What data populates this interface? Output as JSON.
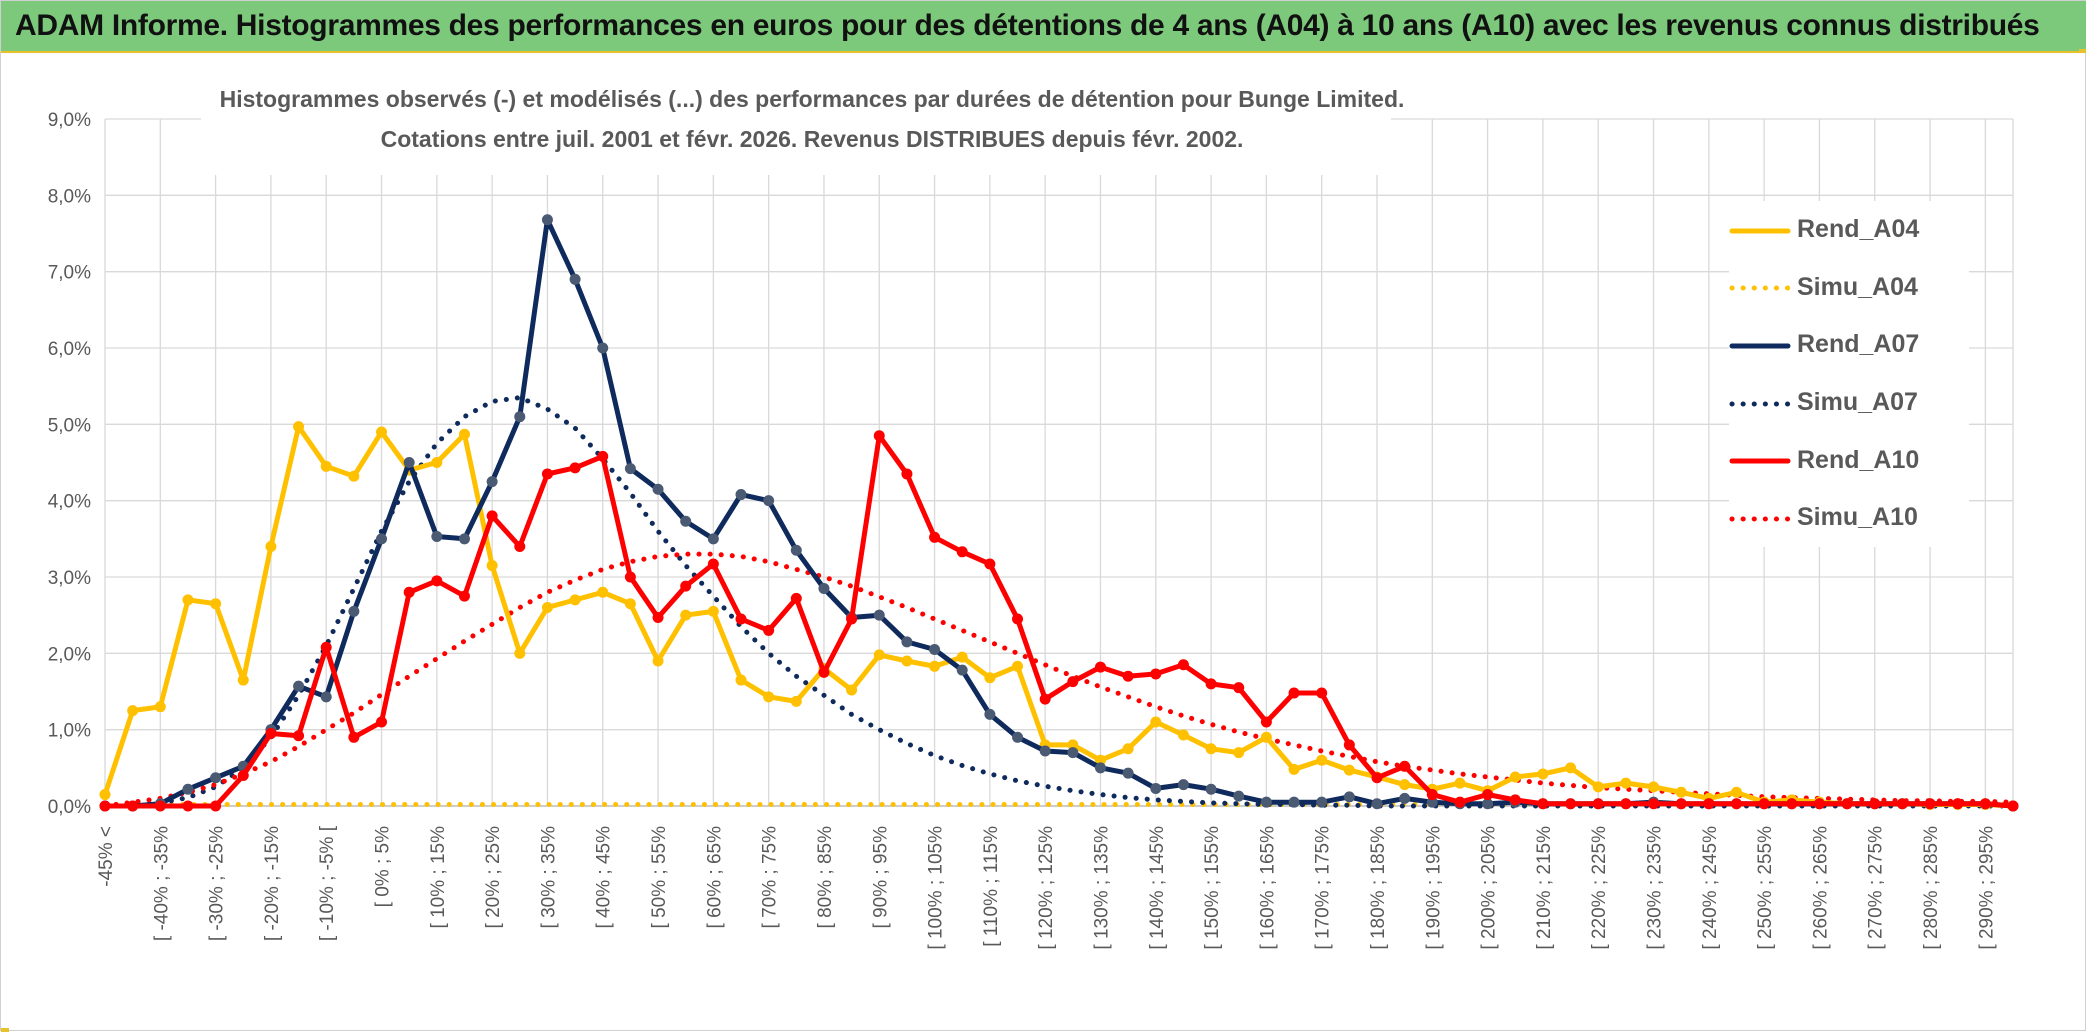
{
  "header": {
    "title": "ADAM Informe. Histogrammes des performances en euros pour des détentions de 4 ans (A04) à 10 ans (A10) avec les revenus connus distribués"
  },
  "chart_data": {
    "type": "line",
    "title": "Histogrammes observés (-) et modélisés (...) des performances par durées de détention pour Bunge Limited.",
    "subtitle": "Cotations entre juil. 2001 et févr. 2026. Revenus DISTRIBUES depuis févr. 2002.",
    "xlabel": "",
    "ylabel": "",
    "ylim": [
      0,
      9
    ],
    "grid": true,
    "legend_position": "right",
    "y_ticks": [
      "0,0%",
      "1,0%",
      "2,0%",
      "3,0%",
      "4,0%",
      "5,0%",
      "6,0%",
      "7,0%",
      "8,0%",
      "9,0%"
    ],
    "x_tick_labels": [
      "-45% <",
      "[ -40% ; -35%",
      "[ -30% ; -25%",
      "[ -20% ; -15%",
      "[ -10% ; -5% [",
      "[ 0% ; 5%",
      "[ 10% ; 15%",
      "[ 20% ; 25%",
      "[ 30% ; 35%",
      "[ 40% ; 45%",
      "[ 50% ; 55%",
      "[ 60% ; 65%",
      "[ 70% ; 75%",
      "[ 80% ; 85%",
      "[ 90% ; 95%",
      "[ 100% ; 105%",
      "[ 110% ; 115%",
      "[ 120% ; 125%",
      "[ 130% ; 135%",
      "[ 140% ; 145%",
      "[ 150% ; 155%",
      "[ 160% ; 165%",
      "[ 170% ; 175%",
      "[ 180% ; 185%",
      "[ 190% ; 195%",
      "[ 200% ; 205%",
      "[ 210% ; 215%",
      "[ 220% ; 225%",
      "[ 230% ; 235%",
      "[ 240% ; 245%",
      "[ 250% ; 255%",
      "[ 260% ; 265%",
      "[ 270% ; 275%",
      "[ 280% ; 285%",
      "[ 290% ; 295%"
    ],
    "series": [
      {
        "name": "Rend_A04",
        "style": "solid",
        "color": "#ffc000",
        "markers": true,
        "values": [
          0.15,
          1.25,
          1.3,
          2.7,
          2.65,
          1.65,
          3.4,
          4.97,
          4.45,
          4.32,
          4.9,
          4.4,
          4.5,
          4.87,
          3.15,
          2.0,
          2.6,
          2.7,
          2.8,
          2.65,
          1.9,
          2.5,
          2.55,
          1.65,
          1.43,
          1.37,
          1.8,
          1.52,
          1.98,
          1.9,
          1.83,
          1.95,
          1.68,
          1.83,
          0.8,
          0.8,
          0.6,
          0.75,
          1.1,
          0.93,
          0.75,
          0.7,
          0.9,
          0.48,
          0.6,
          0.47,
          0.38,
          0.28,
          0.22,
          0.3,
          0.2,
          0.38,
          0.42,
          0.5,
          0.25,
          0.3,
          0.25,
          0.18,
          0.1,
          0.18,
          0.05,
          0.08,
          0.05,
          0.03,
          0.03,
          0.03,
          0.02,
          0.02,
          0.02,
          0.0
        ]
      },
      {
        "name": "Simu_A04",
        "style": "dotted",
        "color": "#ffc000",
        "markers": false,
        "values": [
          0.02,
          0.02,
          0.02,
          0.02,
          0.02,
          0.02,
          0.02,
          0.02,
          0.02,
          0.02,
          0.02,
          0.02,
          0.02,
          0.02,
          0.02,
          0.02,
          0.02,
          0.02,
          0.02,
          0.02,
          0.02,
          0.02,
          0.02,
          0.02,
          0.02,
          0.02,
          0.02,
          0.02,
          0.02,
          0.02,
          0.02,
          0.02,
          0.02,
          0.02,
          0.02,
          0.02,
          0.02,
          0.02,
          0.02,
          0.02,
          0.02,
          0.02,
          0.02,
          0.02,
          0.02,
          0.02,
          0.02,
          0.02,
          0.02,
          0.02,
          0.02,
          0.02,
          0.02,
          0.02,
          0.02,
          0.02,
          0.02,
          0.02,
          0.02,
          0.02,
          0.02,
          0.02,
          0.02,
          0.02,
          0.02,
          0.02,
          0.02,
          0.02,
          0.02,
          0.02
        ]
      },
      {
        "name": "Rend_A07",
        "style": "solid",
        "color": "#0f2a5c",
        "markers": true,
        "values": [
          0.0,
          0.0,
          0.03,
          0.22,
          0.37,
          0.52,
          1.0,
          1.57,
          1.43,
          2.55,
          3.5,
          4.5,
          3.53,
          3.5,
          4.25,
          5.1,
          7.68,
          6.9,
          6.0,
          4.42,
          4.15,
          3.73,
          3.5,
          4.08,
          4.0,
          3.35,
          2.85,
          2.47,
          2.5,
          2.15,
          2.05,
          1.78,
          1.2,
          0.9,
          0.72,
          0.7,
          0.5,
          0.43,
          0.23,
          0.28,
          0.22,
          0.13,
          0.05,
          0.05,
          0.05,
          0.12,
          0.03,
          0.1,
          0.05,
          0.03,
          0.03,
          0.05,
          0.03,
          0.03,
          0.03,
          0.03,
          0.05,
          0.03,
          0.03,
          0.03,
          0.03,
          0.03,
          0.03,
          0.03,
          0.03,
          0.03,
          0.03,
          0.03,
          0.03,
          0.0
        ]
      },
      {
        "name": "Simu_A07",
        "style": "dotted",
        "color": "#0f2a5c",
        "markers": false,
        "values": [
          0.0,
          0.01,
          0.04,
          0.11,
          0.25,
          0.5,
          0.9,
          1.45,
          2.1,
          2.85,
          3.6,
          4.25,
          4.75,
          5.1,
          5.3,
          5.35,
          5.2,
          4.95,
          4.55,
          4.1,
          3.6,
          3.15,
          2.75,
          2.35,
          2.0,
          1.7,
          1.45,
          1.2,
          1.0,
          0.82,
          0.66,
          0.53,
          0.42,
          0.33,
          0.26,
          0.2,
          0.15,
          0.11,
          0.08,
          0.06,
          0.04,
          0.03,
          0.02,
          0.02,
          0.01,
          0.01,
          0.0,
          0.0,
          0.0,
          0.0,
          0.0,
          0.0,
          0.0,
          0.0,
          0.0,
          0.0,
          0.0,
          0.0,
          0.0,
          0.0,
          0.0,
          0.0,
          0.0,
          0.0,
          0.0,
          0.0,
          0.0,
          0.0,
          0.0,
          0.0
        ]
      },
      {
        "name": "Rend_A10",
        "style": "solid",
        "color": "#ff0000",
        "markers": true,
        "values": [
          0.0,
          0.0,
          0.0,
          0.0,
          0.0,
          0.4,
          0.95,
          0.92,
          2.08,
          0.9,
          1.1,
          2.8,
          2.95,
          2.75,
          3.8,
          3.4,
          4.35,
          4.43,
          4.58,
          3.0,
          2.47,
          2.88,
          3.17,
          2.45,
          2.3,
          2.72,
          1.75,
          2.45,
          4.85,
          4.35,
          3.52,
          3.33,
          3.17,
          2.45,
          1.4,
          1.63,
          1.82,
          1.7,
          1.73,
          1.85,
          1.6,
          1.55,
          1.1,
          1.48,
          1.48,
          0.8,
          0.37,
          0.52,
          0.15,
          0.05,
          0.15,
          0.08,
          0.03,
          0.03,
          0.03,
          0.03,
          0.03,
          0.03,
          0.03,
          0.03,
          0.03,
          0.03,
          0.03,
          0.03,
          0.03,
          0.03,
          0.03,
          0.03,
          0.03,
          0.0
        ]
      },
      {
        "name": "Simu_A10",
        "style": "dotted",
        "color": "#ff0000",
        "markers": false,
        "values": [
          0.0,
          0.05,
          0.1,
          0.18,
          0.28,
          0.42,
          0.58,
          0.78,
          1.0,
          1.22,
          1.46,
          1.7,
          1.93,
          2.16,
          2.38,
          2.6,
          2.8,
          2.96,
          3.1,
          3.2,
          3.27,
          3.3,
          3.3,
          3.27,
          3.2,
          3.1,
          3.0,
          2.88,
          2.74,
          2.6,
          2.45,
          2.3,
          2.15,
          2.0,
          1.85,
          1.7,
          1.56,
          1.43,
          1.3,
          1.18,
          1.07,
          0.97,
          0.88,
          0.8,
          0.72,
          0.65,
          0.58,
          0.52,
          0.47,
          0.42,
          0.38,
          0.34,
          0.3,
          0.27,
          0.24,
          0.22,
          0.2,
          0.18,
          0.16,
          0.14,
          0.12,
          0.11,
          0.1,
          0.09,
          0.08,
          0.07,
          0.07,
          0.06,
          0.06,
          0.05
        ]
      }
    ]
  }
}
